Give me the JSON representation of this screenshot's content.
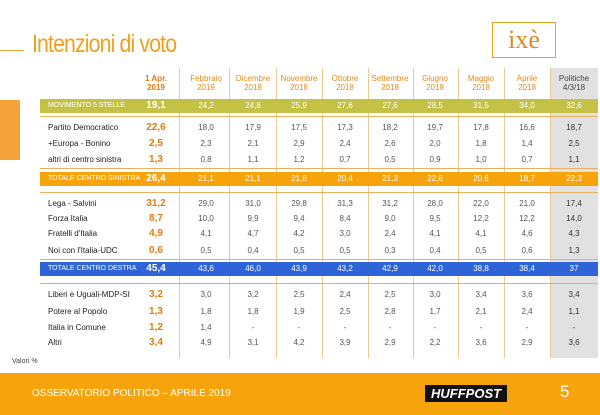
{
  "header": {
    "title": "Intenzioni di voto",
    "logo": "ixè"
  },
  "table": {
    "columns": [
      [
        "1 Apr.",
        "2019"
      ],
      [
        "Febbraio",
        "2019"
      ],
      [
        "Dicembre",
        "2018"
      ],
      [
        "Novembre",
        "2018"
      ],
      [
        "Ottobre",
        "2018"
      ],
      [
        "Settembre",
        "2018"
      ],
      [
        "Giugno",
        "2018"
      ],
      [
        "Maggio",
        "2018"
      ],
      [
        "Aprile",
        "2018"
      ],
      [
        "Politiche",
        "4/3/18"
      ]
    ],
    "rows": [
      [
        "MOVIMENTO 5 STELLE",
        "19,1",
        "24,2",
        "24,8",
        "25,9",
        "27,6",
        "27,6",
        "28,5",
        "31,5",
        "34,0",
        "32,6"
      ],
      [
        "Partito Democratico",
        "22,6",
        "18,0",
        "17,9",
        "17,5",
        "17,3",
        "18,2",
        "19,7",
        "17,8",
        "16,6",
        "18,7"
      ],
      [
        "+Europa - Bonino",
        "2,5",
        "2,3",
        "2,1",
        "2,9",
        "2,4",
        "2,6",
        "2,0",
        "1,8",
        "1,4",
        "2,5"
      ],
      [
        "altri di centro sinistra",
        "1,3",
        "0,8",
        "1,1",
        "1,2",
        "0,7",
        "0,5",
        "0,9",
        "1,0",
        "0,7",
        "1,1"
      ],
      [
        "TOTALE CENTRO SINISTRA",
        "26,4",
        "21,1",
        "21,1",
        "21,6",
        "20,4",
        "21,3",
        "22,6",
        "20,6",
        "18,7",
        "22,3"
      ],
      [
        "Lega - Salvini",
        "31,2",
        "29,0",
        "31,0",
        "29,8",
        "31,3",
        "31,2",
        "28,0",
        "22,0",
        "21,0",
        "17,4"
      ],
      [
        "Forza Italia",
        "8,7",
        "10,0",
        "9,9",
        "9,4",
        "8,4",
        "9,0",
        "9,5",
        "12,2",
        "12,2",
        "14,0"
      ],
      [
        "Fratelli d'Italia",
        "4,9",
        "4,1",
        "4,7",
        "4,2",
        "3,0",
        "2,4",
        "4,1",
        "4,1",
        "4,6",
        "4,3"
      ],
      [
        "Noi con l'Italia-UDC",
        "0,6",
        "0,5",
        "0,4",
        "0,5",
        "0,5",
        "0,3",
        "0,4",
        "0,5",
        "0,6",
        "1,3"
      ],
      [
        "TOTALE CENTRO DESTRA",
        "45,4",
        "43,6",
        "46,0",
        "43,9",
        "43,2",
        "42,9",
        "42,0",
        "38,8",
        "38,4",
        "37"
      ],
      [
        "Liberi e Uguali-MDP-SI",
        "3,2",
        "3,0",
        "3,2",
        "2,5",
        "2,4",
        "2,5",
        "3,0",
        "3,4",
        "3,6",
        "3,4"
      ],
      [
        "Potere al Popolo",
        "1,3",
        "1,8",
        "1,8",
        "1,9",
        "2,5",
        "2,8",
        "1,7",
        "2,1",
        "2,4",
        "1,1"
      ],
      [
        "Italia in Comune",
        "1,2",
        "1,4",
        "-",
        "-",
        "-",
        "-",
        "-",
        "-",
        "-",
        "-"
      ],
      [
        "Altri",
        "3,4",
        "4,9",
        "3,1",
        "4,2",
        "3,9",
        "2,9",
        "2,2",
        "3,6",
        "2,9",
        "3,6"
      ]
    ]
  },
  "footer": {
    "note": "Valori %",
    "text": "OSSERVATORIO POLITICO – APRILE 2019",
    "brand": "HUFFPOST",
    "page": "5"
  }
}
